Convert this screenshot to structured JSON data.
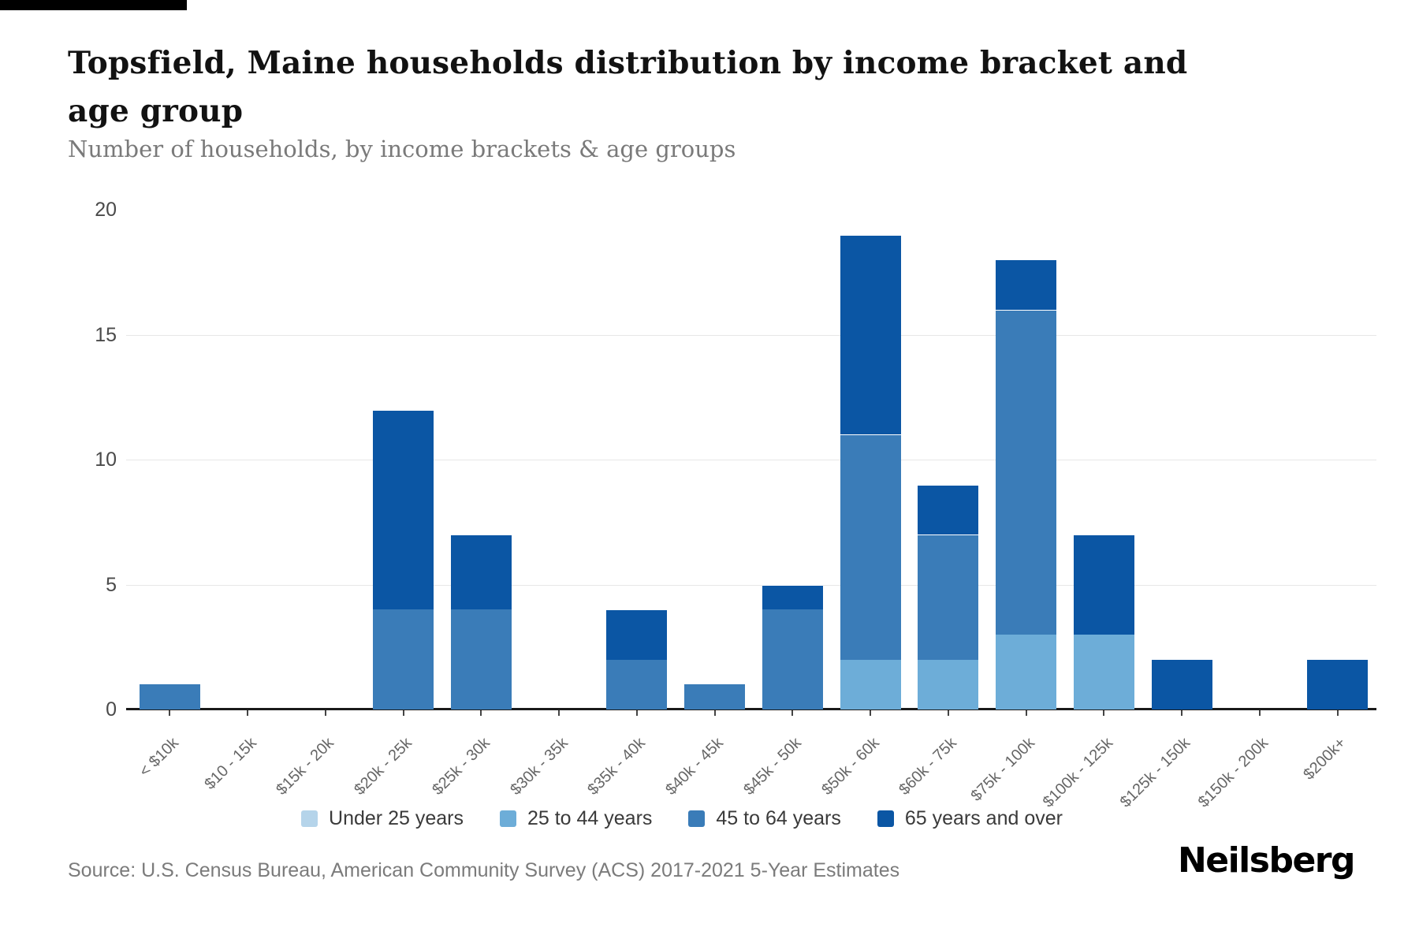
{
  "header": {
    "title": "Topsfield, Maine households distribution by income bracket and age group",
    "subtitle": "Number of households, by income brackets & age groups"
  },
  "footer": {
    "source": "Source: U.S. Census Bureau, American Community Survey (ACS) 2017-2021 5-Year Estimates",
    "brand": "Neilsberg"
  },
  "chart_data": {
    "type": "bar",
    "stacked": true,
    "title": "Topsfield, Maine households distribution by income bracket and age group",
    "subtitle": "Number of households, by income brackets & age groups",
    "xlabel": "",
    "ylabel": "Number of households",
    "ylim": [
      0,
      20
    ],
    "yticks": [
      0,
      5,
      10,
      15,
      20
    ],
    "grid": true,
    "gridlines_at": [
      5,
      10,
      15
    ],
    "legend_position": "bottom",
    "categories": [
      "< $10k",
      "$10 - 15k",
      "$15k - 20k",
      "$20k - 25k",
      "$25k - 30k",
      "$30k - 35k",
      "$35k - 40k",
      "$40k - 45k",
      "$45k - 50k",
      "$50k - 60k",
      "$60k - 75k",
      "$75k - 100k",
      "$100k - 125k",
      "$125k - 150k",
      "$150k - 200k",
      "$200k+"
    ],
    "series": [
      {
        "name": "Under 25 years",
        "color": "#b5d4ea",
        "values": [
          0,
          0,
          0,
          0,
          0,
          0,
          0,
          0,
          0,
          0,
          0,
          0,
          0,
          0,
          0,
          0
        ]
      },
      {
        "name": "25 to 44 years",
        "color": "#6dadd8",
        "values": [
          0,
          0,
          0,
          0,
          0,
          0,
          0,
          0,
          0,
          2,
          2,
          3,
          3,
          0,
          0,
          0
        ]
      },
      {
        "name": "45 to 64 years",
        "color": "#3a7cb8",
        "values": [
          1,
          0,
          0,
          4,
          4,
          0,
          2,
          1,
          4,
          9,
          5,
          13,
          0,
          0,
          0,
          0
        ]
      },
      {
        "name": "65 years and over",
        "color": "#0b56a4",
        "values": [
          0,
          0,
          0,
          8,
          3,
          0,
          2,
          0,
          1,
          8,
          2,
          2,
          4,
          2,
          0,
          2
        ]
      }
    ],
    "totals": [
      1,
      0,
      0,
      12,
      7,
      0,
      4,
      1,
      5,
      19,
      9,
      18,
      7,
      2,
      0,
      2
    ]
  }
}
